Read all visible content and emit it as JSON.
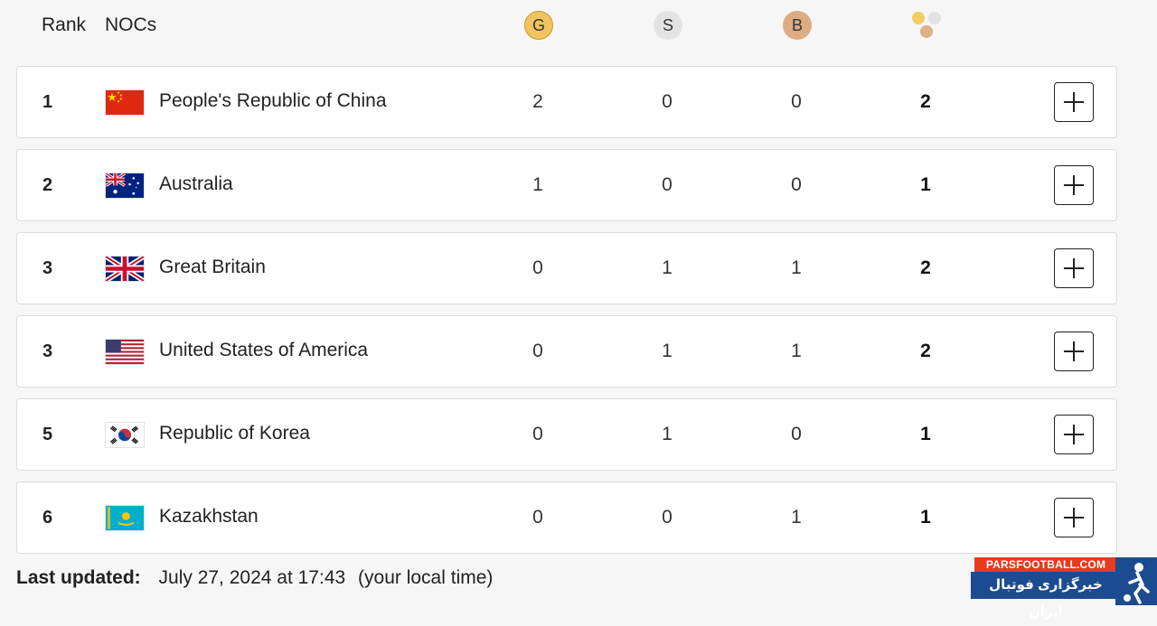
{
  "header": {
    "rank_label": "Rank",
    "nocs_label": "NOCs",
    "gold_label": "G",
    "silver_label": "S",
    "bronze_label": "B",
    "total_icon": "medals-total-icon"
  },
  "colors": {
    "gold": "#f1c460",
    "silver": "#e3e3e3",
    "bronze": "#deac82",
    "row_bg": "#ffffff",
    "page_bg": "#f6f6f6"
  },
  "table": {
    "columns": [
      "Rank",
      "NOCs",
      "G",
      "S",
      "B",
      "Total"
    ],
    "rows": [
      {
        "rank": "1",
        "country": "People's Republic of China",
        "flag": "china-flag",
        "gold": "2",
        "silver": "0",
        "bronze": "0",
        "total": "2"
      },
      {
        "rank": "2",
        "country": "Australia",
        "flag": "australia-flag",
        "gold": "1",
        "silver": "0",
        "bronze": "0",
        "total": "1"
      },
      {
        "rank": "3",
        "country": "Great Britain",
        "flag": "great-britain-flag",
        "gold": "0",
        "silver": "1",
        "bronze": "1",
        "total": "2"
      },
      {
        "rank": "3",
        "country": "United States of America",
        "flag": "usa-flag",
        "gold": "0",
        "silver": "1",
        "bronze": "1",
        "total": "2"
      },
      {
        "rank": "5",
        "country": "Republic of Korea",
        "flag": "korea-flag",
        "gold": "0",
        "silver": "1",
        "bronze": "0",
        "total": "1"
      },
      {
        "rank": "6",
        "country": "Kazakhstan",
        "flag": "kazakhstan-flag",
        "gold": "0",
        "silver": "0",
        "bronze": "1",
        "total": "1"
      }
    ]
  },
  "footer": {
    "label": "Last updated:",
    "datetime": "July 27, 2024 at 17:43",
    "note": "(your local time)"
  },
  "watermark": {
    "site": "PARSFOOTBALL.COM",
    "tagline": "خبرگزاری فوتبال ایران"
  }
}
